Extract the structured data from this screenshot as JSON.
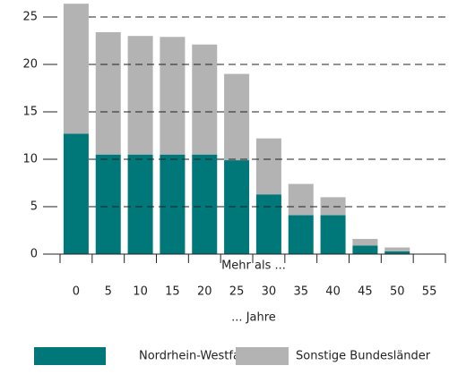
{
  "chart_data": {
    "type": "stacked_bar",
    "categories": [
      "0",
      "5",
      "10",
      "15",
      "20",
      "25",
      "30",
      "35",
      "40",
      "45",
      "50",
      "55"
    ],
    "series": [
      {
        "name": "Nordrhein-Westfalen",
        "color": "#00787a",
        "values": [
          12.7,
          10.5,
          10.5,
          10.5,
          10.5,
          9.9,
          6.3,
          4.1,
          4.1,
          0.9,
          0.3,
          0
        ]
      },
      {
        "name": "Sonstige Bundesländer",
        "color": "#b3b3b3",
        "values": [
          13.7,
          12.9,
          12.5,
          12.4,
          11.6,
          9.1,
          5.9,
          3.3,
          1.9,
          0.7,
          0.4,
          0
        ]
      }
    ],
    "xlabel_top": "Mehr als ...",
    "xlabel_bottom": "... Jahre",
    "ylim": [
      0,
      25.5
    ],
    "yticks": [
      0,
      5,
      10,
      15,
      20,
      25
    ],
    "grid": true
  }
}
